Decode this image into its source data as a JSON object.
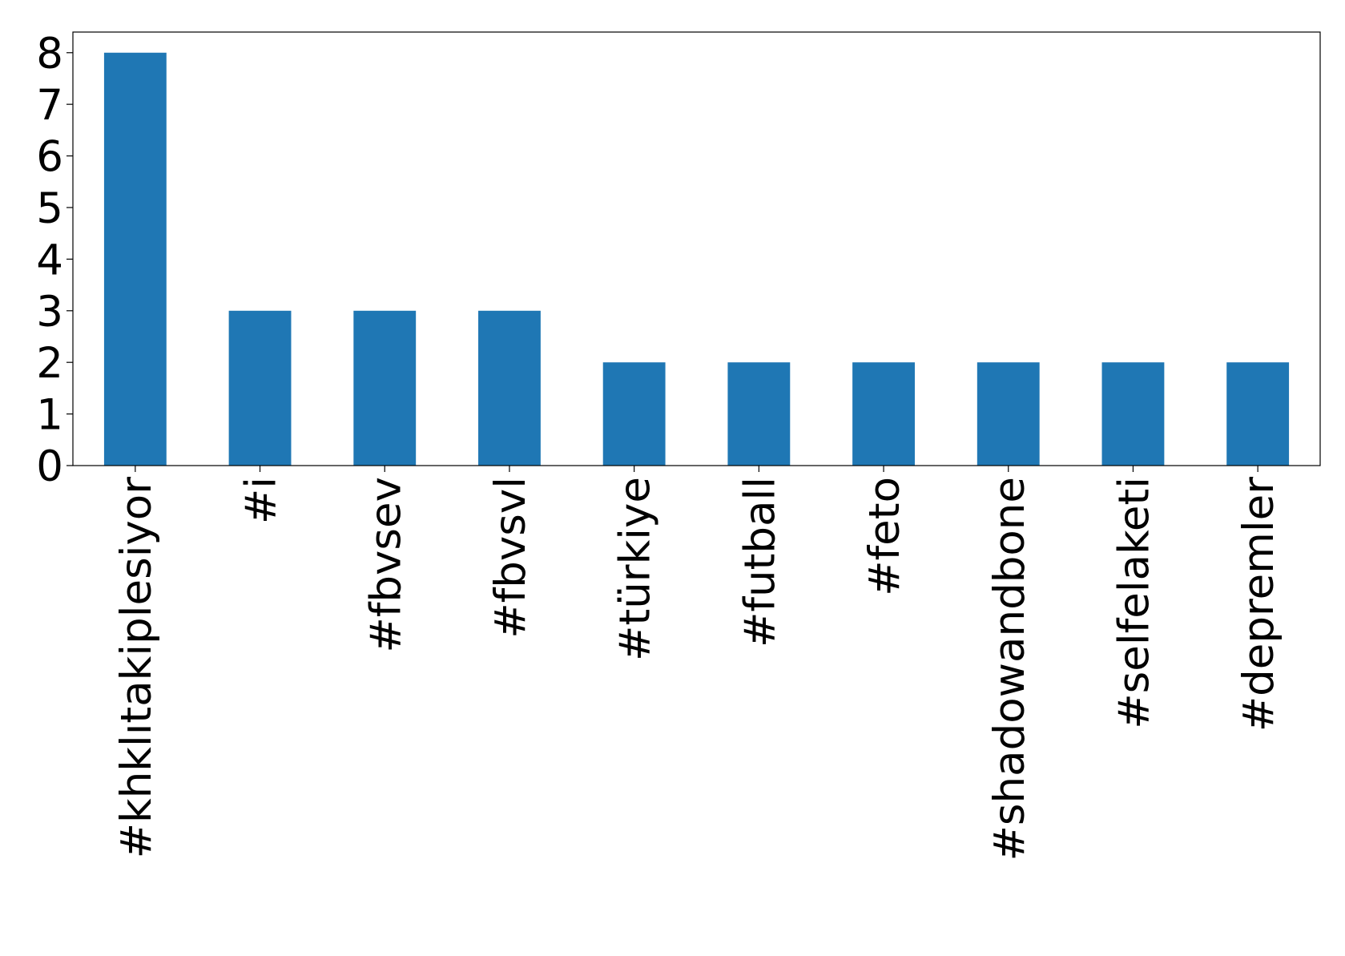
{
  "chart_data": {
    "type": "bar",
    "categories": [
      "#khklıtakiplesiyor",
      "#i",
      "#fbvsev",
      "#fbvsvl",
      "#türkiye",
      "#futball",
      "#feto",
      "#shadowandbone",
      "#selfelaketi",
      "#depremler"
    ],
    "values": [
      8,
      3,
      3,
      3,
      2,
      2,
      2,
      2,
      2,
      2
    ],
    "color": "#1f77b4",
    "ylim": [
      0,
      8.4
    ],
    "yticks": [
      0,
      1,
      2,
      3,
      4,
      5,
      6,
      7,
      8
    ],
    "grid": false
  }
}
